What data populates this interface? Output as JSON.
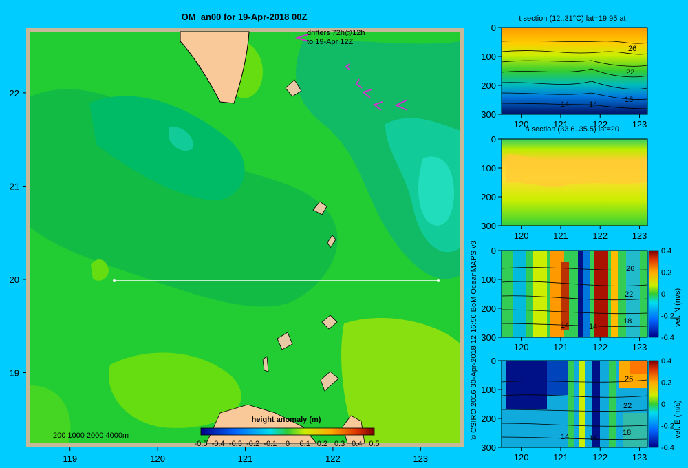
{
  "colors": {
    "background": "#00ccff",
    "land": "#f9c99a",
    "drifter": "#cc33cc"
  },
  "map": {
    "title": "OM_an00 for 19-Apr-2018 00Z",
    "drifter_legend_line1": "drifters 72h@12h",
    "drifter_legend_line2": "to 19-Apr 12Z",
    "bathy_legend": "200  1000  2000  4000m",
    "credit": "© CSIRO 2016   30-Apr-2018 12:16:50 BoM OceanMAPS v3",
    "colorbar_title": "height anomaly  (m)",
    "colorbar_ticks": [
      "-0.5",
      "-0.4",
      "-0.3",
      "-0.2",
      "-0.1",
      "0",
      "0.1",
      "0.2",
      "0.3",
      "0.4",
      "0.5"
    ],
    "x_ticks": [
      "119",
      "120",
      "121",
      "122",
      "123"
    ],
    "y_ticks": [
      "22",
      "21",
      "20",
      "19"
    ]
  },
  "panels": [
    {
      "id": "t",
      "title": "t section (12..31°C) lat=19.95 at",
      "y_ticks": [
        "0",
        "100",
        "200",
        "300"
      ],
      "x_ticks": [
        "120",
        "121",
        "122",
        "123"
      ],
      "contour_labels": [
        "26",
        "22",
        "18",
        "14",
        "14"
      ]
    },
    {
      "id": "s",
      "title": "s section (33.6..35.5) lat=20",
      "y_ticks": [
        "0",
        "100",
        "200",
        "300"
      ],
      "x_ticks": [
        "120",
        "121",
        "122",
        "123"
      ],
      "contour_labels": []
    },
    {
      "id": "n",
      "title": "",
      "y_ticks": [
        "0",
        "100",
        "200",
        "300"
      ],
      "x_ticks": [
        "120",
        "121",
        "122",
        "123"
      ],
      "contour_labels": [
        "26",
        "22",
        "18",
        "14",
        "14"
      ],
      "cb_label": "vel. N (m/s)",
      "cb_ticks": [
        "0.4",
        "0.2",
        "0",
        "-0.2",
        "-0.4"
      ]
    },
    {
      "id": "e",
      "title": "",
      "y_ticks": [
        "0",
        "100",
        "200",
        "300"
      ],
      "x_ticks": [
        "120",
        "121",
        "122",
        "123"
      ],
      "contour_labels": [
        "26",
        "22",
        "18",
        "14",
        "14"
      ],
      "cb_label": "vel. E (m/s)",
      "cb_ticks": [
        "0.4",
        "0.2",
        "0",
        "-0.2",
        "-0.4"
      ]
    }
  ],
  "chart_data": [
    {
      "type": "heatmap",
      "title": "OM_an00 for 19-Apr-2018 00Z",
      "xlim": [
        118.5,
        123.5
      ],
      "ylim": [
        18.2,
        22.7
      ],
      "variable": "height anomaly (m)",
      "range": [
        -0.5,
        0.5
      ],
      "section_line": {
        "lat": 20.0,
        "lon_start": 119.5,
        "lon_end": 123.2
      }
    },
    {
      "type": "heatmap",
      "title": "t section (12..31°C) lat=19.95 at",
      "xlim": [
        119.5,
        123.2
      ],
      "ylim": [
        300,
        0
      ]
    },
    {
      "type": "heatmap",
      "title": "s section (33.6..35.5) lat=20",
      "xlim": [
        119.5,
        123.2
      ],
      "ylim": [
        300,
        0
      ]
    },
    {
      "type": "heatmap",
      "title": "vel. N (m/s)",
      "xlim": [
        119.5,
        123.2
      ],
      "ylim": [
        300,
        0
      ],
      "range": [
        -0.4,
        0.4
      ]
    },
    {
      "type": "heatmap",
      "title": "vel. E (m/s)",
      "xlim": [
        119.5,
        123.2
      ],
      "ylim": [
        300,
        0
      ],
      "range": [
        -0.4,
        0.4
      ]
    }
  ]
}
